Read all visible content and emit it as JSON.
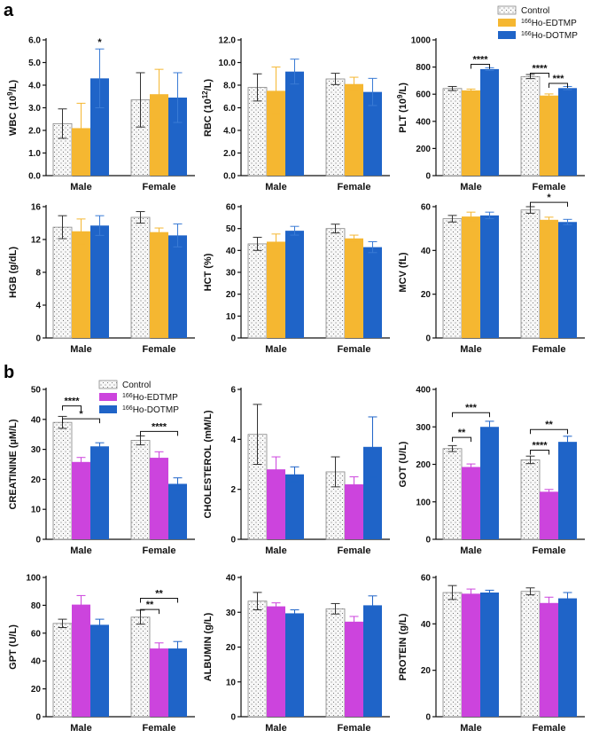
{
  "panels": {
    "a": "a",
    "b": "b"
  },
  "colors": {
    "control": "#f4f4f4",
    "ho_edtmp_a": "#f5b731",
    "ho_dotmp": "#1f64c8",
    "ho_edtmp_b": "#cc44dd",
    "error_a_edtmp": "#f5b731",
    "error_a_dotmp": "#3a7bd5"
  },
  "legend_a": {
    "items": [
      {
        "label": "Control",
        "key": "control"
      },
      {
        "label": "166Ho-EDTMP",
        "key": "ho_edtmp_a"
      },
      {
        "label": "166Ho-DOTMP",
        "key": "ho_dotmp"
      }
    ],
    "placement": "top-right of PLT panel"
  },
  "legend_b": {
    "items": [
      {
        "label": "Control",
        "key": "control"
      },
      {
        "label": "166Ho-EDTMP",
        "key": "ho_edtmp_b"
      },
      {
        "label": "166Ho-DOTMP",
        "key": "ho_dotmp"
      }
    ],
    "placement": "top-right of CREATININE panel"
  },
  "chart_data": [
    {
      "id": "wbc",
      "panel": "a",
      "type": "bar",
      "ylabel": "WBC (10^9/L)",
      "ylim": [
        0,
        6
      ],
      "yticks": [
        "0.0",
        "1.0",
        "2.0",
        "3.0",
        "4.0",
        "5.0",
        "6.0"
      ],
      "categories": [
        "Male",
        "Female"
      ],
      "series": [
        {
          "name": "Control",
          "values": [
            2.3,
            3.35
          ],
          "errors": [
            0.65,
            1.2
          ]
        },
        {
          "name": "166Ho-EDTMP",
          "values": [
            2.1,
            3.6
          ],
          "errors": [
            1.1,
            1.1
          ]
        },
        {
          "name": "166Ho-DOTMP",
          "values": [
            4.3,
            3.45
          ],
          "errors": [
            1.3,
            1.1
          ]
        }
      ],
      "annotations": [
        {
          "text": "*",
          "group": 0,
          "series": 2
        }
      ]
    },
    {
      "id": "rbc",
      "panel": "a",
      "type": "bar",
      "ylabel": "RBC (10^12/L)",
      "ylim": [
        0,
        12
      ],
      "yticks": [
        "0.0",
        "2.0",
        "4.0",
        "6.0",
        "8.0",
        "10.0",
        "12.0"
      ],
      "categories": [
        "Male",
        "Female"
      ],
      "series": [
        {
          "name": "Control",
          "values": [
            7.8,
            8.55
          ],
          "errors": [
            1.2,
            0.5
          ]
        },
        {
          "name": "166Ho-EDTMP",
          "values": [
            7.5,
            8.1
          ],
          "errors": [
            2.1,
            0.6
          ]
        },
        {
          "name": "166Ho-DOTMP",
          "values": [
            9.2,
            7.4
          ],
          "errors": [
            1.1,
            1.2
          ]
        }
      ],
      "annotations": []
    },
    {
      "id": "plt",
      "panel": "a",
      "type": "bar",
      "ylabel": "PLT (10^9/L)",
      "ylim": [
        0,
        1000
      ],
      "yticks": [
        "0",
        "200",
        "400",
        "600",
        "800",
        "1000"
      ],
      "categories": [
        "Male",
        "Female"
      ],
      "series": [
        {
          "name": "Control",
          "values": [
            642,
            730
          ],
          "errors": [
            15,
            15
          ]
        },
        {
          "name": "166Ho-EDTMP",
          "values": [
            628,
            590
          ],
          "errors": [
            10,
            12
          ]
        },
        {
          "name": "166Ho-DOTMP",
          "values": [
            785,
            645
          ],
          "errors": [
            10,
            12
          ]
        }
      ],
      "brackets": [
        {
          "text": "****",
          "group": 0,
          "from": 1,
          "to": 2,
          "level": 820
        },
        {
          "text": "****",
          "group": 1,
          "from": 0,
          "to": 1,
          "level": 755
        },
        {
          "text": "***",
          "group": 1,
          "from": 1,
          "to": 2,
          "level": 680
        }
      ]
    },
    {
      "id": "hgb",
      "panel": "a",
      "type": "bar",
      "ylabel": "HGB (g/dL)",
      "ylim": [
        0,
        16
      ],
      "yticks": [
        "0",
        "4",
        "8",
        "12",
        "16"
      ],
      "categories": [
        "Male",
        "Female"
      ],
      "series": [
        {
          "name": "Control",
          "values": [
            13.5,
            14.7
          ],
          "errors": [
            1.4,
            0.7
          ]
        },
        {
          "name": "166Ho-EDTMP",
          "values": [
            13.0,
            12.9
          ],
          "errors": [
            1.5,
            0.5
          ]
        },
        {
          "name": "166Ho-DOTMP",
          "values": [
            13.7,
            12.5
          ],
          "errors": [
            1.2,
            1.4
          ]
        }
      ],
      "annotations": []
    },
    {
      "id": "hct",
      "panel": "a",
      "type": "bar",
      "ylabel": "HCT (%)",
      "ylim": [
        0,
        60
      ],
      "yticks": [
        "0",
        "10",
        "20",
        "30",
        "40",
        "50",
        "60"
      ],
      "categories": [
        "Male",
        "Female"
      ],
      "series": [
        {
          "name": "Control",
          "values": [
            43,
            50
          ],
          "errors": [
            3,
            2
          ]
        },
        {
          "name": "166Ho-EDTMP",
          "values": [
            44,
            45.5
          ],
          "errors": [
            3.5,
            1.5
          ]
        },
        {
          "name": "166Ho-DOTMP",
          "values": [
            49,
            41.5
          ],
          "errors": [
            2,
            2.5
          ]
        }
      ],
      "annotations": []
    },
    {
      "id": "mcv",
      "panel": "a",
      "type": "bar",
      "ylabel": "MCV (fL)",
      "ylim": [
        0,
        60
      ],
      "yticks": [
        "0",
        "20",
        "40",
        "60"
      ],
      "categories": [
        "Male",
        "Female"
      ],
      "series": [
        {
          "name": "Control",
          "values": [
            54.5,
            58.5
          ],
          "errors": [
            1.5,
            1.5
          ]
        },
        {
          "name": "166Ho-EDTMP",
          "values": [
            55.5,
            54
          ],
          "errors": [
            2,
            1.2
          ]
        },
        {
          "name": "166Ho-DOTMP",
          "values": [
            56,
            53
          ],
          "errors": [
            1.5,
            1.2
          ]
        }
      ],
      "brackets": [
        {
          "text": "*",
          "group": 1,
          "from": 0,
          "to": 2,
          "level": 62
        }
      ]
    },
    {
      "id": "creatinine",
      "panel": "b",
      "type": "bar",
      "ylabel": "CREATININE (µM/L)",
      "ylim": [
        0,
        50
      ],
      "yticks": [
        "0",
        "10",
        "20",
        "30",
        "40",
        "50"
      ],
      "categories": [
        "Male",
        "Female"
      ],
      "series": [
        {
          "name": "Control",
          "values": [
            39,
            33
          ],
          "errors": [
            2,
            1.5
          ]
        },
        {
          "name": "166Ho-EDTMP",
          "values": [
            25.8,
            27.2
          ],
          "errors": [
            1.5,
            2
          ]
        },
        {
          "name": "166Ho-DOTMP",
          "values": [
            31,
            18.5
          ],
          "errors": [
            1.2,
            2
          ]
        }
      ],
      "brackets": [
        {
          "text": "****",
          "group": 0,
          "from": 0,
          "to": 1,
          "level": 44.5
        },
        {
          "text": "*",
          "group": 0,
          "from": 0,
          "to": 2,
          "level": 40.2
        },
        {
          "text": "****",
          "group": 1,
          "from": 0,
          "to": 2,
          "level": 36
        }
      ]
    },
    {
      "id": "cholesterol",
      "panel": "b",
      "type": "bar",
      "ylabel": "CHOLESTEROL (mM/L)",
      "ylim": [
        0,
        6
      ],
      "yticks": [
        "0",
        "2",
        "4",
        "6"
      ],
      "categories": [
        "Male",
        "Female"
      ],
      "series": [
        {
          "name": "Control",
          "values": [
            4.2,
            2.7
          ],
          "errors": [
            1.2,
            0.6
          ]
        },
        {
          "name": "166Ho-EDTMP",
          "values": [
            2.8,
            2.2
          ],
          "errors": [
            0.5,
            0.3
          ]
        },
        {
          "name": "166Ho-DOTMP",
          "values": [
            2.6,
            3.7
          ],
          "errors": [
            0.3,
            1.2
          ]
        }
      ],
      "annotations": []
    },
    {
      "id": "got",
      "panel": "b",
      "type": "bar",
      "ylabel": "GOT (U/L)",
      "ylim": [
        0,
        400
      ],
      "yticks": [
        "0",
        "100",
        "200",
        "300",
        "400"
      ],
      "categories": [
        "Male",
        "Female"
      ],
      "series": [
        {
          "name": "Control",
          "values": [
            242,
            212
          ],
          "errors": [
            8,
            10
          ]
        },
        {
          "name": "166Ho-EDTMP",
          "values": [
            193,
            127
          ],
          "errors": [
            8,
            6
          ]
        },
        {
          "name": "166Ho-DOTMP",
          "values": [
            300,
            260
          ],
          "errors": [
            15,
            15
          ]
        }
      ],
      "brackets": [
        {
          "text": "***",
          "group": 0,
          "from": 0,
          "to": 2,
          "level": 338
        },
        {
          "text": "**",
          "group": 0,
          "from": 0,
          "to": 1,
          "level": 272
        },
        {
          "text": "**",
          "group": 1,
          "from": 0,
          "to": 2,
          "level": 293
        },
        {
          "text": "****",
          "group": 1,
          "from": 0,
          "to": 1,
          "level": 238
        }
      ]
    },
    {
      "id": "gpt",
      "panel": "b",
      "type": "bar",
      "ylabel": "GPT (U/L)",
      "ylim": [
        0,
        100
      ],
      "yticks": [
        "0",
        "20",
        "40",
        "60",
        "80",
        "100"
      ],
      "categories": [
        "Male",
        "Female"
      ],
      "series": [
        {
          "name": "Control",
          "values": [
            67,
            71.5
          ],
          "errors": [
            3,
            5
          ]
        },
        {
          "name": "166Ho-EDTMP",
          "values": [
            80.5,
            49
          ],
          "errors": [
            6.5,
            4
          ]
        },
        {
          "name": "166Ho-DOTMP",
          "values": [
            66,
            49
          ],
          "errors": [
            4,
            5
          ]
        }
      ],
      "brackets": [
        {
          "text": "**",
          "group": 1,
          "from": 0,
          "to": 2,
          "level": 85
        },
        {
          "text": "**",
          "group": 1,
          "from": 0,
          "to": 1,
          "level": 77
        }
      ]
    },
    {
      "id": "albumin",
      "panel": "b",
      "type": "bar",
      "ylabel": "ALBUMIN (g/L)",
      "ylim": [
        0,
        40
      ],
      "yticks": [
        "0",
        "10",
        "20",
        "30",
        "40"
      ],
      "categories": [
        "Male",
        "Female"
      ],
      "series": [
        {
          "name": "Control",
          "values": [
            33.2,
            31
          ],
          "errors": [
            2.5,
            1.5
          ]
        },
        {
          "name": "166Ho-EDTMP",
          "values": [
            31.7,
            27.3
          ],
          "errors": [
            1,
            1.5
          ]
        },
        {
          "name": "166Ho-DOTMP",
          "values": [
            29.7,
            32
          ],
          "errors": [
            1,
            2.7
          ]
        }
      ],
      "annotations": []
    },
    {
      "id": "protein",
      "panel": "b",
      "type": "bar",
      "ylabel": "PROTEIN (g/L)",
      "ylim": [
        0,
        60
      ],
      "yticks": [
        "0",
        "20",
        "40",
        "60"
      ],
      "categories": [
        "Male",
        "Female"
      ],
      "series": [
        {
          "name": "Control",
          "values": [
            53.5,
            54
          ],
          "errors": [
            3,
            1.5
          ]
        },
        {
          "name": "166Ho-EDTMP",
          "values": [
            53,
            49
          ],
          "errors": [
            2,
            2.5
          ]
        },
        {
          "name": "166Ho-DOTMP",
          "values": [
            53.5,
            51
          ],
          "errors": [
            1,
            2.5
          ]
        }
      ],
      "annotations": []
    }
  ]
}
